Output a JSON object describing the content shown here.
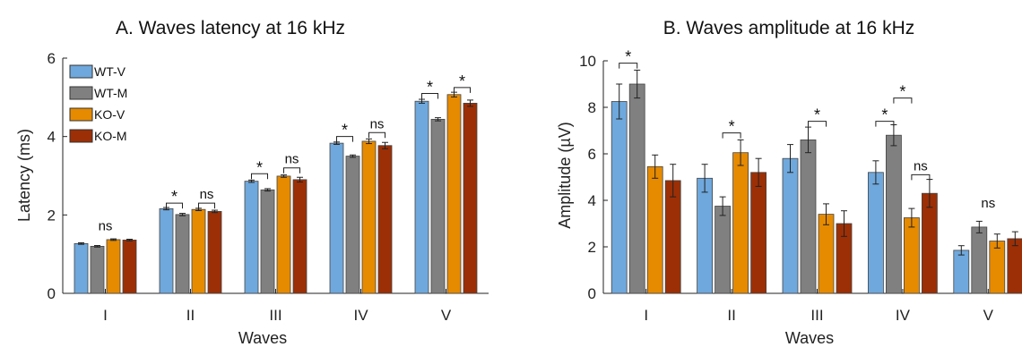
{
  "colors": {
    "WT-V": "#6fa8dc",
    "WT-M": "#808080",
    "KO-V": "#e68a00",
    "KO-M": "#9c2f06"
  },
  "chart_data": [
    {
      "type": "bar",
      "title": "A. Waves latency at 16 kHz",
      "xlabel": "Waves",
      "ylabel": "Latency (ms)",
      "ylim": [
        0,
        6
      ],
      "yticks": [
        0,
        2,
        4,
        6
      ],
      "categories": [
        "I",
        "II",
        "III",
        "IV",
        "V"
      ],
      "legend": {
        "position": "top-left",
        "entries": [
          "WT-V",
          "WT-M",
          "KO-V",
          "KO-M"
        ]
      },
      "series": [
        {
          "name": "WT-V",
          "values": [
            1.27,
            2.16,
            2.86,
            3.83,
            4.9
          ],
          "errors": [
            0.02,
            0.03,
            0.03,
            0.03,
            0.05
          ]
        },
        {
          "name": "WT-M",
          "values": [
            1.2,
            2.01,
            2.64,
            3.5,
            4.44
          ],
          "errors": [
            0.02,
            0.03,
            0.03,
            0.03,
            0.04
          ]
        },
        {
          "name": "KO-V",
          "values": [
            1.37,
            2.14,
            2.99,
            3.88,
            5.07
          ],
          "errors": [
            0.02,
            0.03,
            0.03,
            0.06,
            0.06
          ]
        },
        {
          "name": "KO-M",
          "values": [
            1.36,
            2.09,
            2.9,
            3.77,
            4.85
          ],
          "errors": [
            0.02,
            0.03,
            0.06,
            0.08,
            0.08
          ]
        }
      ],
      "annotations": [
        {
          "category": 0,
          "text": "ns",
          "bracket": false,
          "y": 1.5
        },
        {
          "category": 1,
          "text": "*",
          "from": 0,
          "to": 1,
          "y": 2.3
        },
        {
          "category": 1,
          "text": "ns",
          "from": 2,
          "to": 3,
          "y": 2.3
        },
        {
          "category": 2,
          "text": "*",
          "from": 0,
          "to": 1,
          "y": 3.05
        },
        {
          "category": 2,
          "text": "ns",
          "from": 2,
          "to": 3,
          "y": 3.2
        },
        {
          "category": 3,
          "text": "*",
          "from": 0,
          "to": 1,
          "y": 4.0
        },
        {
          "category": 3,
          "text": "ns",
          "from": 2,
          "to": 3,
          "y": 4.1
        },
        {
          "category": 4,
          "text": "*",
          "from": 0,
          "to": 1,
          "y": 5.1
        },
        {
          "category": 4,
          "text": "*",
          "from": 2,
          "to": 3,
          "y": 5.25
        }
      ]
    },
    {
      "type": "bar",
      "title": "B. Waves amplitude at 16 kHz",
      "xlabel": "Waves",
      "ylabel": "Amplitude (µV)",
      "ylim": [
        0,
        10
      ],
      "yticks": [
        0,
        2,
        4,
        6,
        8,
        10
      ],
      "categories": [
        "I",
        "II",
        "III",
        "IV",
        "V"
      ],
      "series": [
        {
          "name": "WT-V",
          "values": [
            8.25,
            4.95,
            5.8,
            5.2,
            1.85
          ],
          "errors": [
            0.75,
            0.6,
            0.6,
            0.5,
            0.2
          ]
        },
        {
          "name": "WT-M",
          "values": [
            9.0,
            3.75,
            6.6,
            6.8,
            2.85
          ],
          "errors": [
            0.6,
            0.4,
            0.55,
            0.45,
            0.25
          ]
        },
        {
          "name": "KO-V",
          "values": [
            5.45,
            6.05,
            3.4,
            3.25,
            2.25
          ],
          "errors": [
            0.5,
            0.55,
            0.45,
            0.4,
            0.3
          ]
        },
        {
          "name": "KO-M",
          "values": [
            4.85,
            5.2,
            3.0,
            4.3,
            2.35
          ],
          "errors": [
            0.7,
            0.6,
            0.55,
            0.6,
            0.3
          ]
        }
      ],
      "annotations": [
        {
          "category": 0,
          "text": "*",
          "from": 0,
          "to": 1,
          "y": 9.9
        },
        {
          "category": 1,
          "text": "*",
          "from": 1,
          "to": 2,
          "y": 6.9
        },
        {
          "category": 2,
          "text": "*",
          "from": 1,
          "to": 2,
          "y": 7.4
        },
        {
          "category": 3,
          "text": "*",
          "from": 0,
          "to": 1,
          "y": 7.4
        },
        {
          "category": 3,
          "text": "*",
          "from": 1,
          "to": 2,
          "y": 8.4
        },
        {
          "category": 3,
          "text": "ns",
          "from": 2,
          "to": 3,
          "y": 5.1
        },
        {
          "category": 4,
          "text": "ns",
          "bracket": false,
          "y": 3.5
        }
      ]
    }
  ]
}
